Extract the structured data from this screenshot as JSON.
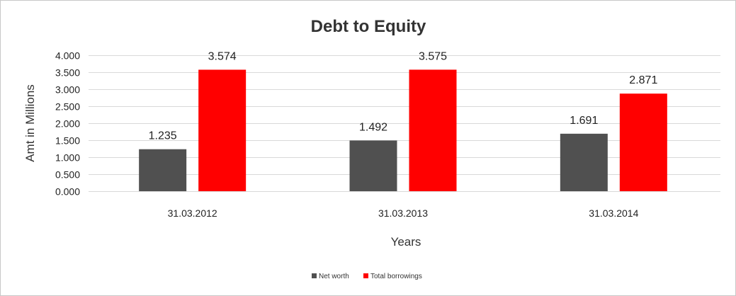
{
  "chart_data": {
    "type": "bar",
    "title": "Debt to Equity",
    "xlabel": "Years",
    "ylabel": "Amt in Millions",
    "categories": [
      "31.03.2012",
      "31.03.2013",
      "31.03.2014"
    ],
    "series": [
      {
        "name": "Net worth",
        "color": "#505050",
        "values": [
          1.235,
          1.492,
          1.691
        ],
        "labels": [
          "1.235",
          "1.492",
          "1.691"
        ]
      },
      {
        "name": "Total borrowings",
        "color": "#ff0000",
        "values": [
          3.574,
          3.575,
          2.871
        ],
        "labels": [
          "3.574",
          "3.575",
          "2.871"
        ]
      }
    ],
    "ylim": [
      0,
      4
    ],
    "yticks": [
      0,
      0.5,
      1,
      1.5,
      2,
      2.5,
      3,
      3.5,
      4
    ],
    "ytick_labels": [
      "0.000",
      "0.500",
      "1.000",
      "1.500",
      "2.000",
      "2.500",
      "3.000",
      "3.500",
      "4.000"
    ],
    "grid": true,
    "legend_position": "bottom"
  }
}
